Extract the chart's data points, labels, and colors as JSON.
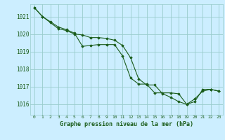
{
  "title": "Graphe pression niveau de la mer (hPa)",
  "background_color": "#cceeff",
  "grid_color": "#99cccc",
  "line_color": "#1a5c1a",
  "marker_color": "#1a5c1a",
  "xlim": [
    -0.5,
    23.5
  ],
  "ylim": [
    1015.4,
    1021.7
  ],
  "yticks": [
    1016,
    1017,
    1018,
    1019,
    1020,
    1021
  ],
  "xticks": [
    0,
    1,
    2,
    3,
    4,
    5,
    6,
    7,
    8,
    9,
    10,
    11,
    12,
    13,
    14,
    15,
    16,
    17,
    18,
    19,
    20,
    21,
    22,
    23
  ],
  "series1_x": [
    0,
    1,
    2,
    3,
    4,
    5,
    6,
    7,
    8,
    9,
    10,
    11,
    12,
    13,
    14,
    15,
    16,
    17,
    18,
    19,
    20,
    21,
    22,
    23
  ],
  "series1_y": [
    1021.5,
    1021.0,
    1020.65,
    1020.3,
    1020.2,
    1020.0,
    1019.95,
    1019.8,
    1019.8,
    1019.75,
    1019.65,
    1019.35,
    1018.65,
    1017.45,
    1017.1,
    1017.1,
    1016.6,
    1016.4,
    1016.15,
    1016.0,
    1016.3,
    1016.75,
    1016.85,
    1016.75
  ],
  "series2_x": [
    0,
    1,
    2,
    3,
    4,
    5,
    6,
    7,
    8,
    9,
    10,
    11,
    12,
    13,
    14,
    15,
    16,
    17,
    18,
    19,
    20,
    21,
    22,
    23
  ],
  "series2_y": [
    1021.5,
    1021.0,
    1020.7,
    1020.4,
    1020.25,
    1020.05,
    1019.3,
    1019.35,
    1019.4,
    1019.4,
    1019.4,
    1018.75,
    1017.5,
    1017.15,
    1017.15,
    1016.65,
    1016.65,
    1016.65,
    1016.6,
    1016.0,
    1016.15,
    1016.85,
    1016.85,
    1016.75
  ]
}
